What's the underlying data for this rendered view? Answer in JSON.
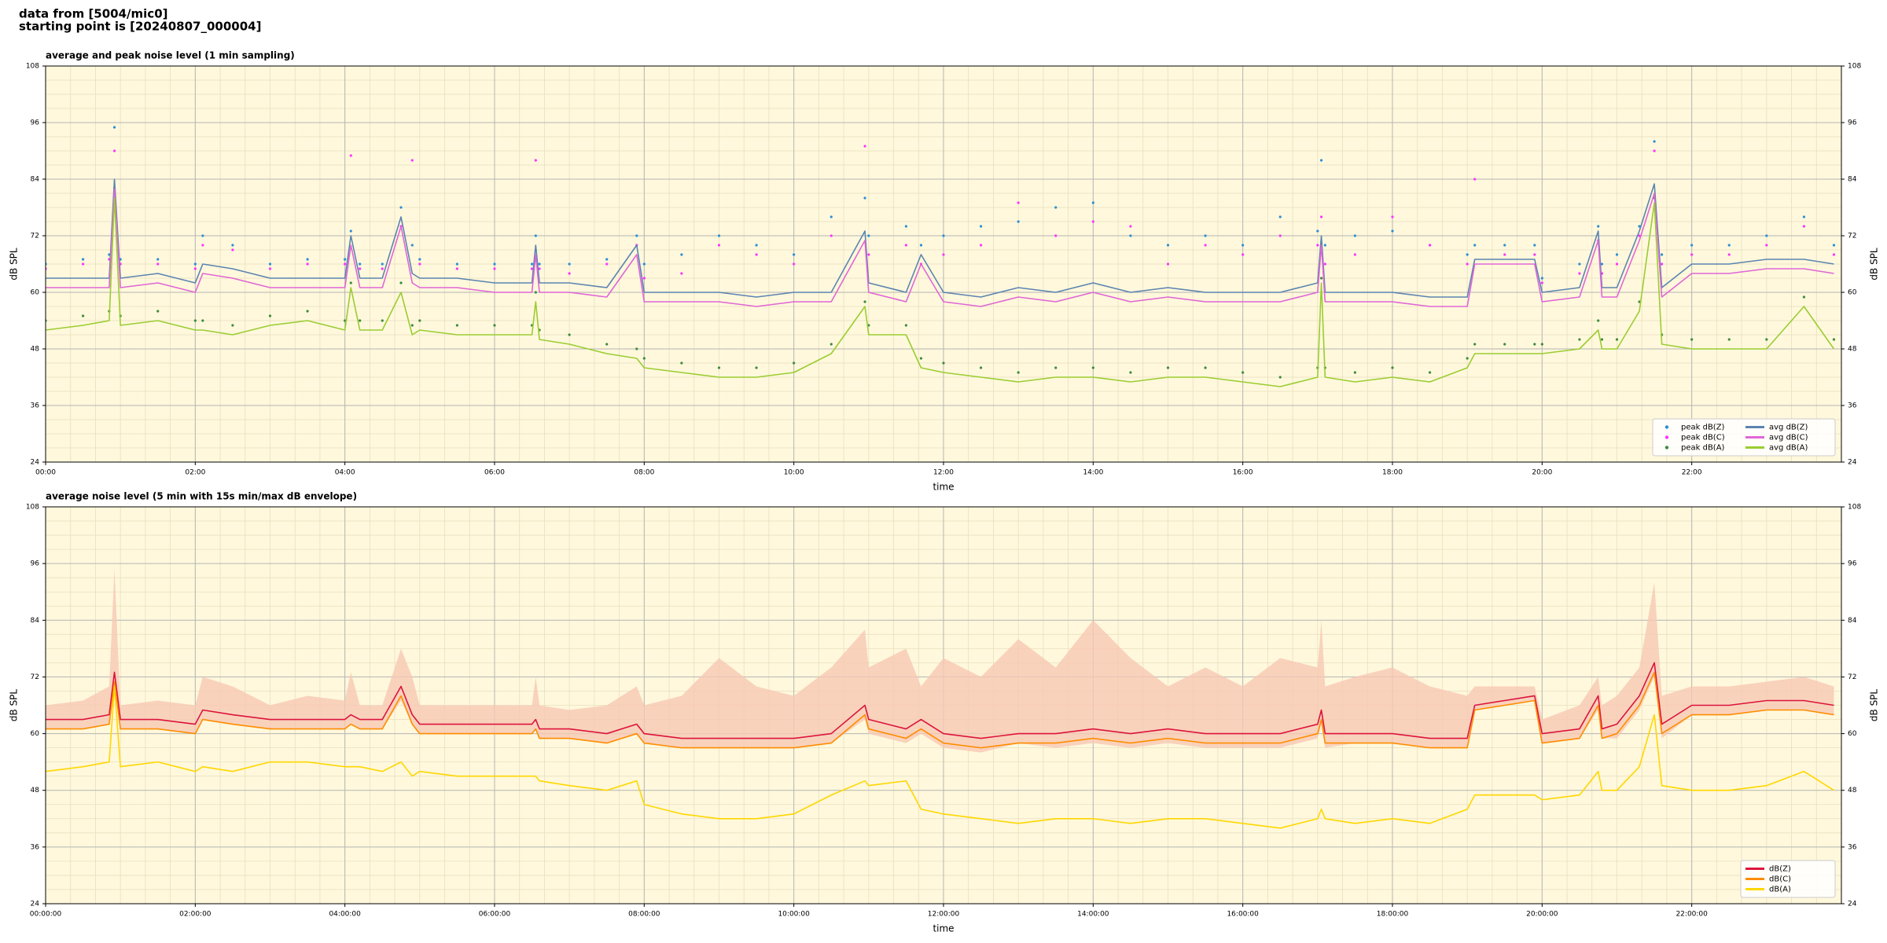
{
  "header": [
    "data from [5004/mic0]",
    "starting point is [20240807_000004]"
  ],
  "chart_data": [
    {
      "type": "line",
      "title": "average and peak noise level (1 min sampling)",
      "xlabel": "time",
      "ylabel": "dB SPL",
      "background": "#fff8dc",
      "grid": true,
      "legend": "lower right",
      "legend_columns": 2,
      "xlim": [
        0,
        24
      ],
      "ylim": [
        24,
        108
      ],
      "yticks": [
        24,
        36,
        48,
        60,
        72,
        84,
        96,
        108
      ],
      "xticks": [
        {
          "value": 0,
          "label": "00:00"
        },
        {
          "value": 2,
          "label": "02:00"
        },
        {
          "value": 4,
          "label": "04:00"
        },
        {
          "value": 6,
          "label": "06:00"
        },
        {
          "value": 8,
          "label": "08:00"
        },
        {
          "value": 10,
          "label": "10:00"
        },
        {
          "value": 12,
          "label": "12:00"
        },
        {
          "value": 14,
          "label": "14:00"
        },
        {
          "value": 16,
          "label": "16:00"
        },
        {
          "value": 18,
          "label": "18:00"
        },
        {
          "value": 20,
          "label": "20:00"
        },
        {
          "value": 22,
          "label": "22:00"
        }
      ],
      "x": [
        0,
        0.5,
        0.85,
        0.92,
        1.0,
        1.5,
        2.0,
        2.1,
        2.5,
        3.0,
        3.5,
        4.0,
        4.08,
        4.2,
        4.5,
        4.75,
        4.9,
        5.0,
        5.5,
        6.0,
        6.5,
        6.55,
        6.6,
        7.0,
        7.5,
        7.9,
        8.0,
        8.5,
        9.0,
        9.5,
        10.0,
        10.5,
        10.95,
        11.0,
        11.5,
        11.7,
        12.0,
        12.5,
        13.0,
        13.5,
        14.0,
        14.5,
        15.0,
        15.5,
        16.0,
        16.5,
        17.0,
        17.05,
        17.1,
        17.5,
        18.0,
        18.5,
        19.0,
        19.1,
        19.5,
        19.9,
        20.0,
        20.5,
        20.75,
        20.8,
        21.0,
        21.3,
        21.5,
        21.6,
        22.0,
        22.5,
        23.0,
        23.5,
        23.9
      ],
      "series": [
        {
          "name": "peak dB(Z)",
          "style": "dots",
          "color": "#2a8fd6",
          "values": [
            66,
            67,
            68,
            95,
            67,
            67,
            66,
            72,
            70,
            66,
            67,
            67,
            73,
            66,
            66,
            78,
            70,
            67,
            66,
            66,
            66,
            72,
            66,
            66,
            67,
            72,
            66,
            68,
            72,
            70,
            68,
            76,
            80,
            72,
            74,
            70,
            72,
            74,
            75,
            78,
            79,
            72,
            70,
            72,
            70,
            76,
            73,
            88,
            70,
            72,
            73,
            70,
            68,
            70,
            70,
            70,
            63,
            66,
            74,
            66,
            68,
            74,
            92,
            68,
            70,
            70,
            72,
            76,
            70
          ]
        },
        {
          "name": "peak dB(C)",
          "style": "dots",
          "color": "#ff33ff",
          "values": [
            65,
            66,
            67,
            90,
            66,
            66,
            65,
            70,
            69,
            65,
            66,
            66,
            89,
            65,
            65,
            74,
            88,
            66,
            65,
            65,
            65,
            88,
            65,
            64,
            66,
            70,
            63,
            64,
            70,
            68,
            66,
            72,
            91,
            68,
            70,
            66,
            68,
            70,
            79,
            72,
            75,
            74,
            66,
            70,
            68,
            72,
            70,
            76,
            66,
            68,
            76,
            70,
            66,
            84,
            68,
            68,
            62,
            64,
            71,
            64,
            66,
            72,
            90,
            66,
            68,
            68,
            70,
            74,
            68
          ]
        },
        {
          "name": "peak dB(A)",
          "style": "dots",
          "color": "#3c8c3c",
          "values": [
            54,
            55,
            56,
            82,
            55,
            56,
            54,
            54,
            53,
            55,
            56,
            54,
            62,
            54,
            54,
            62,
            53,
            54,
            53,
            53,
            53,
            60,
            52,
            51,
            49,
            48,
            46,
            45,
            44,
            44,
            45,
            49,
            58,
            53,
            53,
            46,
            45,
            44,
            43,
            44,
            44,
            43,
            44,
            44,
            43,
            42,
            44,
            63,
            44,
            43,
            44,
            43,
            46,
            49,
            49,
            49,
            49,
            50,
            54,
            50,
            50,
            58,
            80,
            51,
            50,
            50,
            50,
            59,
            50
          ]
        },
        {
          "name": "avg dB(Z)",
          "style": "line",
          "color": "#5b84b1",
          "values": [
            63,
            63,
            63,
            84,
            63,
            64,
            62,
            66,
            65,
            63,
            63,
            63,
            72,
            63,
            63,
            76,
            64,
            63,
            63,
            62,
            62,
            70,
            62,
            62,
            61,
            70,
            60,
            60,
            60,
            59,
            60,
            60,
            73,
            62,
            60,
            68,
            60,
            59,
            61,
            60,
            62,
            60,
            61,
            60,
            60,
            60,
            62,
            72,
            60,
            60,
            60,
            59,
            59,
            67,
            67,
            67,
            60,
            61,
            73,
            61,
            61,
            73,
            83,
            61,
            66,
            66,
            67,
            67,
            66
          ]
        },
        {
          "name": "avg dB(C)",
          "style": "line",
          "color": "#e066d6",
          "values": [
            61,
            61,
            61,
            82,
            61,
            62,
            60,
            64,
            63,
            61,
            61,
            61,
            70,
            61,
            61,
            74,
            62,
            61,
            61,
            60,
            60,
            68,
            60,
            60,
            59,
            68,
            58,
            58,
            58,
            57,
            58,
            58,
            71,
            60,
            58,
            66,
            58,
            57,
            59,
            58,
            60,
            58,
            59,
            58,
            58,
            58,
            60,
            70,
            58,
            58,
            58,
            57,
            57,
            66,
            66,
            66,
            58,
            59,
            71,
            59,
            59,
            71,
            81,
            59,
            64,
            64,
            65,
            65,
            64
          ]
        },
        {
          "name": "avg dB(A)",
          "style": "line",
          "color": "#9acd32",
          "values": [
            52,
            53,
            54,
            80,
            53,
            54,
            52,
            52,
            51,
            53,
            54,
            52,
            61,
            52,
            52,
            60,
            51,
            52,
            51,
            51,
            51,
            58,
            50,
            49,
            47,
            46,
            44,
            43,
            42,
            42,
            43,
            47,
            57,
            51,
            51,
            44,
            43,
            42,
            41,
            42,
            42,
            41,
            42,
            42,
            41,
            40,
            42,
            62,
            42,
            41,
            42,
            41,
            44,
            47,
            47,
            47,
            47,
            48,
            52,
            48,
            48,
            56,
            79,
            49,
            48,
            48,
            48,
            57,
            48
          ]
        }
      ]
    },
    {
      "type": "line",
      "title": "average noise level (5 min with 15s min/max dB envelope)",
      "xlabel": "time",
      "ylabel": "dB SPL",
      "background": "#fff8dc",
      "grid": true,
      "legend": "lower right",
      "legend_columns": 1,
      "xlim": [
        0,
        24
      ],
      "ylim": [
        24,
        108
      ],
      "yticks": [
        24,
        36,
        48,
        60,
        72,
        84,
        96,
        108
      ],
      "xticks": [
        {
          "value": 0,
          "label": "00:00:00"
        },
        {
          "value": 2,
          "label": "02:00:00"
        },
        {
          "value": 4,
          "label": "04:00:00"
        },
        {
          "value": 6,
          "label": "06:00:00"
        },
        {
          "value": 8,
          "label": "08:00:00"
        },
        {
          "value": 10,
          "label": "10:00:00"
        },
        {
          "value": 12,
          "label": "12:00:00"
        },
        {
          "value": 14,
          "label": "14:00:00"
        },
        {
          "value": 16,
          "label": "16:00:00"
        },
        {
          "value": 18,
          "label": "18:00:00"
        },
        {
          "value": 20,
          "label": "20:00:00"
        },
        {
          "value": 22,
          "label": "22:00:00"
        }
      ],
      "x": [
        0,
        0.5,
        0.85,
        0.92,
        1.0,
        1.5,
        2.0,
        2.1,
        2.5,
        3.0,
        3.5,
        4.0,
        4.08,
        4.2,
        4.5,
        4.75,
        4.9,
        5.0,
        5.5,
        6.0,
        6.5,
        6.55,
        6.6,
        7.0,
        7.5,
        7.9,
        8.0,
        8.5,
        9.0,
        9.5,
        10.0,
        10.5,
        10.95,
        11.0,
        11.5,
        11.7,
        12.0,
        12.5,
        13.0,
        13.5,
        14.0,
        14.5,
        15.0,
        15.5,
        16.0,
        16.5,
        17.0,
        17.05,
        17.1,
        17.5,
        18.0,
        18.5,
        19.0,
        19.1,
        19.5,
        19.9,
        20.0,
        20.5,
        20.75,
        20.8,
        21.0,
        21.3,
        21.5,
        21.6,
        22.0,
        22.5,
        23.0,
        23.5,
        23.9
      ],
      "envelope": {
        "color": "#f8c8b4",
        "upper": [
          66,
          67,
          70,
          95,
          66,
          67,
          66,
          72,
          70,
          66,
          68,
          67,
          73,
          66,
          66,
          78,
          72,
          66,
          66,
          66,
          66,
          72,
          66,
          65,
          66,
          70,
          66,
          68,
          76,
          70,
          68,
          74,
          82,
          74,
          78,
          70,
          76,
          72,
          80,
          74,
          84,
          76,
          70,
          74,
          70,
          76,
          74,
          84,
          70,
          72,
          74,
          70,
          68,
          70,
          70,
          70,
          63,
          66,
          72,
          66,
          68,
          74,
          92,
          68,
          70,
          70,
          71,
          72,
          70
        ],
        "lower": [
          61,
          61,
          62,
          70,
          61,
          61,
          60,
          63,
          62,
          61,
          61,
          61,
          62,
          61,
          61,
          67,
          62,
          60,
          60,
          60,
          60,
          61,
          59,
          59,
          58,
          60,
          58,
          57,
          57,
          57,
          57,
          58,
          63,
          60,
          58,
          60,
          57,
          56,
          58,
          57,
          58,
          57,
          58,
          57,
          57,
          57,
          59,
          62,
          57,
          58,
          58,
          57,
          57,
          65,
          66,
          67,
          58,
          59,
          65,
          59,
          59,
          65,
          72,
          59,
          64,
          64,
          65,
          65,
          64
        ]
      },
      "series": [
        {
          "name": "dB(Z)",
          "style": "line",
          "color": "#dc143c",
          "values": [
            63,
            63,
            64,
            73,
            63,
            63,
            62,
            65,
            64,
            63,
            63,
            63,
            64,
            63,
            63,
            70,
            64,
            62,
            62,
            62,
            62,
            63,
            61,
            61,
            60,
            62,
            60,
            59,
            59,
            59,
            59,
            60,
            66,
            63,
            61,
            63,
            60,
            59,
            60,
            60,
            61,
            60,
            61,
            60,
            60,
            60,
            62,
            65,
            60,
            60,
            60,
            59,
            59,
            66,
            67,
            68,
            60,
            61,
            68,
            61,
            62,
            68,
            75,
            62,
            66,
            66,
            67,
            67,
            66
          ]
        },
        {
          "name": "dB(C)",
          "style": "line",
          "color": "#ff8c00",
          "values": [
            61,
            61,
            62,
            71,
            61,
            61,
            60,
            63,
            62,
            61,
            61,
            61,
            62,
            61,
            61,
            68,
            62,
            60,
            60,
            60,
            60,
            61,
            59,
            59,
            58,
            60,
            58,
            57,
            57,
            57,
            57,
            58,
            64,
            61,
            59,
            61,
            58,
            57,
            58,
            58,
            59,
            58,
            59,
            58,
            58,
            58,
            60,
            63,
            58,
            58,
            58,
            57,
            57,
            65,
            66,
            67,
            58,
            59,
            66,
            59,
            60,
            66,
            73,
            60,
            64,
            64,
            65,
            65,
            64
          ]
        },
        {
          "name": "dB(A)",
          "style": "line",
          "color": "#ffd700",
          "values": [
            52,
            53,
            54,
            70,
            53,
            54,
            52,
            53,
            52,
            54,
            54,
            53,
            53,
            53,
            52,
            54,
            51,
            52,
            51,
            51,
            51,
            51,
            50,
            49,
            48,
            50,
            45,
            43,
            42,
            42,
            43,
            47,
            50,
            49,
            50,
            44,
            43,
            42,
            41,
            42,
            42,
            41,
            42,
            42,
            41,
            40,
            42,
            44,
            42,
            41,
            42,
            41,
            44,
            47,
            47,
            47,
            46,
            47,
            52,
            48,
            48,
            53,
            64,
            49,
            48,
            48,
            49,
            52,
            48
          ]
        }
      ]
    }
  ]
}
